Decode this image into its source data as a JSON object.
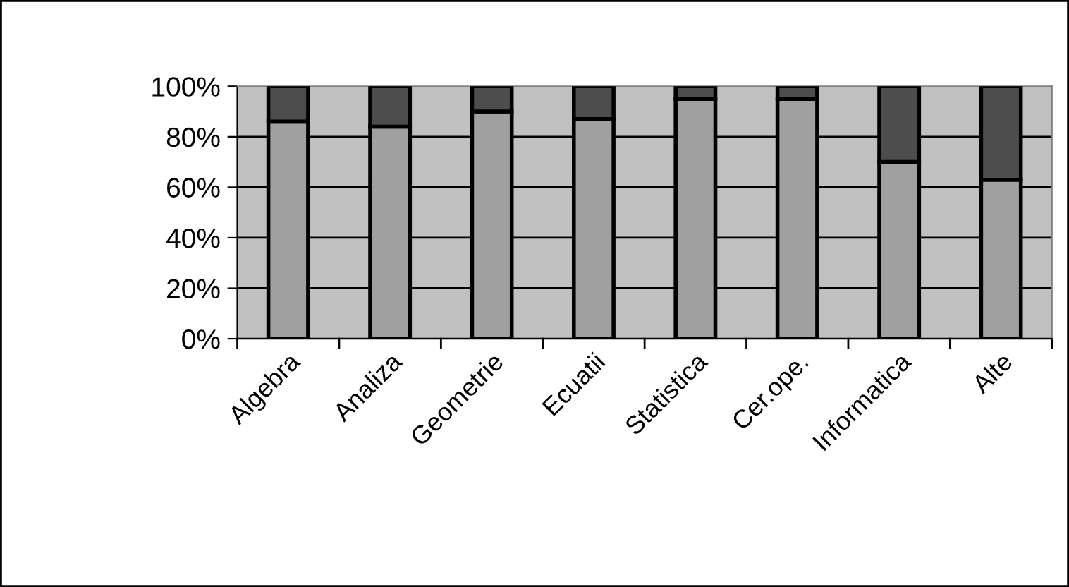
{
  "chart_data": {
    "type": "bar",
    "stacked": true,
    "categories": [
      "Algebra",
      "Analiza",
      "Geometrie",
      "Ecuatii",
      "Statistica",
      "Cer.ope.",
      "Informatica",
      "Alte"
    ],
    "series": [
      {
        "color": "#a0a0a0",
        "values": [
          86,
          84,
          90,
          87,
          95,
          95,
          70,
          63
        ]
      },
      {
        "color": "#4d4d4d",
        "values": [
          14,
          16,
          10,
          13,
          5,
          5,
          30,
          37
        ]
      }
    ],
    "ylim": [
      0,
      100
    ],
    "yticks": [
      {
        "value": 0,
        "label": "0%"
      },
      {
        "value": 20,
        "label": "20%"
      },
      {
        "value": 40,
        "label": "40%"
      },
      {
        "value": 60,
        "label": "60%"
      },
      {
        "value": 80,
        "label": "80%"
      },
      {
        "value": 100,
        "label": "100%"
      }
    ],
    "grid": "y",
    "legend": false
  }
}
